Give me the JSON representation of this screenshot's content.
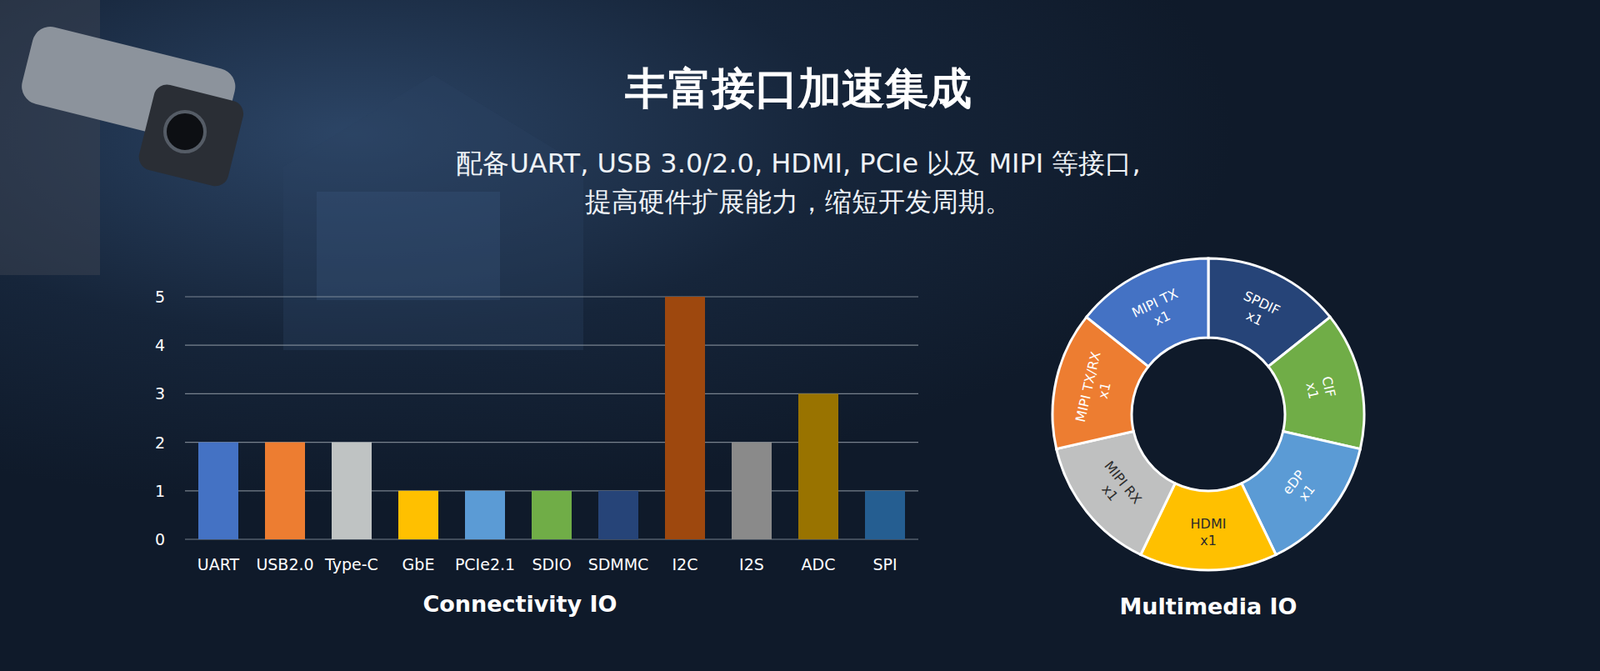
{
  "header": {
    "title": "丰富接口加速集成",
    "subtitle": [
      "配备UART, USB 3.0/2.0, HDMI, PCIe 以及 MIPI 等接口,",
      "提高硬件扩展能力，缩短开发周期。"
    ]
  },
  "chart_data": [
    {
      "type": "bar",
      "title": "Connectivity IO",
      "categories": [
        "UART",
        "USB2.0",
        "Type-C",
        "GbE",
        "PCIe2.1",
        "SDIO",
        "SDMMC",
        "I2C",
        "I2S",
        "ADC",
        "SPI"
      ],
      "values": [
        2,
        2,
        2,
        1,
        1,
        1,
        1,
        5,
        2,
        3,
        1
      ],
      "colors": [
        "#4472c4",
        "#ed7d31",
        "#bfc3c3",
        "#ffc000",
        "#5b9bd5",
        "#70ad47",
        "#264478",
        "#9e480e",
        "#8a8a8a",
        "#997300",
        "#255e91"
      ],
      "ylim": [
        0,
        5
      ],
      "yticks": [
        0,
        1,
        2,
        3,
        4,
        5
      ],
      "grid": true
    },
    {
      "type": "donut",
      "title": "Multimedia IO",
      "categories": [
        "SPDIF",
        "CIF",
        "eDP",
        "HDMI",
        "MIPI RX",
        "MIPI TX/RX",
        "MIPI TX"
      ],
      "values": [
        1,
        1,
        1,
        1,
        1,
        1,
        1
      ],
      "value_labels": [
        "x1",
        "x1",
        "x1",
        "x1",
        "x1",
        "x1",
        "x1"
      ],
      "colors": [
        "#264478",
        "#70ad47",
        "#5b9bd5",
        "#ffc000",
        "#bfc0c0",
        "#ed7d31",
        "#4472c4"
      ],
      "data_labels": true
    }
  ]
}
